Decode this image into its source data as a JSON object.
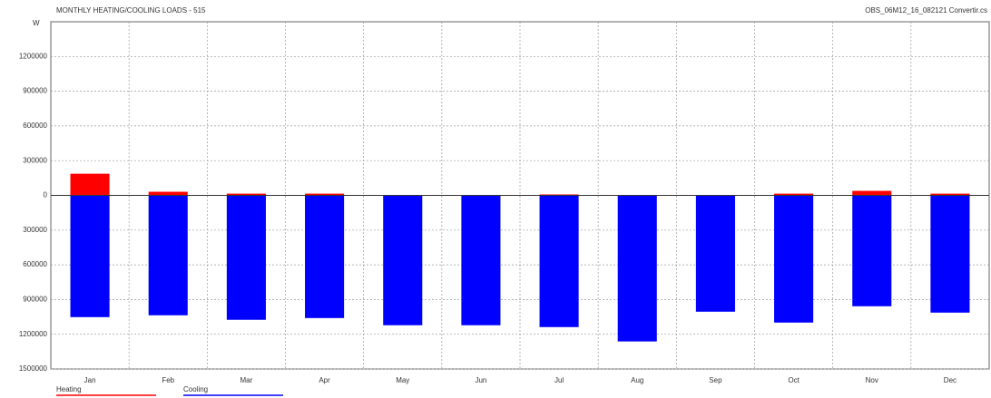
{
  "chart_data": {
    "type": "bar",
    "title": "MONTHLY HEATING/COOLING LOADS - 515",
    "subtitle": "OBS_06M12_16_082121 Convertir.cs",
    "y_label": "W",
    "categories": [
      "Jan",
      "Feb",
      "Mar",
      "Apr",
      "May",
      "Jun",
      "Jul",
      "Aug",
      "Sep",
      "Oct",
      "Nov",
      "Dec"
    ],
    "series": [
      {
        "name": "Heating",
        "color": "#ff0000",
        "values": [
          187000,
          31000,
          15000,
          15000,
          0,
          0,
          8000,
          0,
          0,
          15000,
          39000,
          15000
        ]
      },
      {
        "name": "Cooling",
        "color": "#0000ff",
        "values": [
          -1052000,
          -1036000,
          -1075000,
          -1060000,
          -1122000,
          -1122000,
          -1138000,
          -1262000,
          -1005000,
          -1099000,
          -958000,
          -1013000
        ]
      }
    ],
    "ylim": [
      -1500000,
      1500000
    ],
    "yticks": [
      1200000,
      900000,
      600000,
      300000,
      0,
      {
        "value": -300000,
        "label": "300000"
      },
      {
        "value": -600000,
        "label": "600000"
      },
      {
        "value": -900000,
        "label": "900000"
      },
      {
        "value": -1200000,
        "label": "1200000"
      },
      {
        "value": -1500000,
        "label": "1500000"
      }
    ],
    "grid": true
  }
}
